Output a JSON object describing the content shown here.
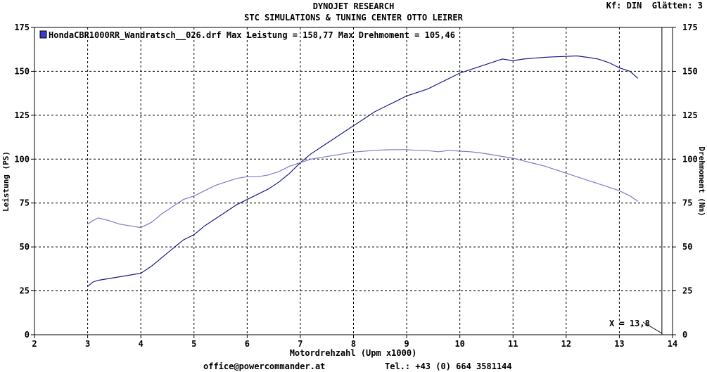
{
  "header": {
    "title_line1": "DYNOJET RESEARCH",
    "title_line2": "STC SIMULATIONS & TUNING CENTER OTTO LEIRER",
    "settings": "Kf: DIN  Glätten: 3"
  },
  "footer": {
    "email": "office@powercommander.at",
    "phone": "Tel.: +43 (0) 664 3581144"
  },
  "chart_data": {
    "type": "line",
    "legend_text": "HondaCBR1000RR_Wandratsch__026.drf Max Leistung = 158,77    Max Drehmoment = 105,46",
    "xlabel": "Motordrehzahl (Upm x1000)",
    "ylabel_left": "Leistung (PS)",
    "ylabel_right": "Drehmoment (Nm)",
    "xlim": [
      2,
      14
    ],
    "ylim": [
      0,
      175
    ],
    "x_ticks": [
      2,
      3,
      4,
      5,
      6,
      7,
      8,
      9,
      10,
      11,
      12,
      13,
      14
    ],
    "y_ticks": [
      0,
      25,
      50,
      75,
      100,
      125,
      150,
      175
    ],
    "cursor_label": "X = 13,8",
    "cursor_x": 13.8,
    "grid": true,
    "series": [
      {
        "color": "#1a1a8c",
        "x": [
          3.0,
          3.1,
          3.2,
          3.4,
          3.6,
          3.8,
          4.0,
          4.2,
          4.4,
          4.6,
          4.8,
          5.0,
          5.2,
          5.4,
          5.6,
          5.8,
          6.0,
          6.2,
          6.4,
          6.6,
          6.8,
          7.0,
          7.2,
          7.4,
          7.6,
          7.8,
          8.0,
          8.2,
          8.4,
          8.6,
          8.8,
          9.0,
          9.2,
          9.4,
          9.6,
          9.8,
          10.0,
          10.2,
          10.4,
          10.6,
          10.8,
          11.0,
          11.2,
          11.4,
          11.6,
          11.8,
          12.0,
          12.2,
          12.4,
          12.6,
          12.8,
          13.0,
          13.2,
          13.35
        ],
        "y": [
          27.5,
          30,
          31,
          32,
          33,
          34,
          35,
          39,
          44,
          49,
          54,
          57,
          62,
          66,
          70,
          74,
          77,
          80,
          83,
          87,
          92,
          98,
          103,
          107,
          111,
          115,
          119,
          123,
          127,
          130,
          133,
          136,
          138,
          140,
          143,
          146,
          149,
          151,
          153,
          155,
          157,
          156,
          157,
          157.5,
          158,
          158.3,
          158.5,
          158.8,
          158,
          157,
          155,
          152,
          150,
          146
        ]
      },
      {
        "color": "#7b7bc8",
        "x": [
          3.0,
          3.1,
          3.2,
          3.4,
          3.6,
          3.8,
          4.0,
          4.2,
          4.4,
          4.6,
          4.8,
          5.0,
          5.2,
          5.4,
          5.6,
          5.8,
          6.0,
          6.2,
          6.4,
          6.6,
          6.8,
          7.0,
          7.2,
          7.4,
          7.6,
          7.8,
          8.0,
          8.2,
          8.4,
          8.6,
          8.8,
          9.0,
          9.2,
          9.4,
          9.6,
          9.8,
          10.0,
          10.2,
          10.4,
          10.6,
          10.8,
          11.0,
          11.2,
          11.4,
          11.6,
          11.8,
          12.0,
          12.2,
          12.4,
          12.6,
          12.8,
          13.0,
          13.2,
          13.35
        ],
        "y": [
          63,
          65,
          66.5,
          65,
          63,
          62,
          61,
          64,
          69,
          73,
          77,
          79,
          82,
          85,
          87,
          89,
          90,
          90,
          91,
          93,
          96,
          98,
          100,
          101,
          102,
          103,
          104,
          104.5,
          105,
          105.3,
          105.4,
          105.4,
          105,
          104.8,
          104.2,
          105,
          104.5,
          104.2,
          103.5,
          102.5,
          101.5,
          100.5,
          99,
          97.5,
          96,
          94,
          92,
          90,
          88,
          86,
          84,
          82,
          79,
          76
        ]
      }
    ]
  }
}
